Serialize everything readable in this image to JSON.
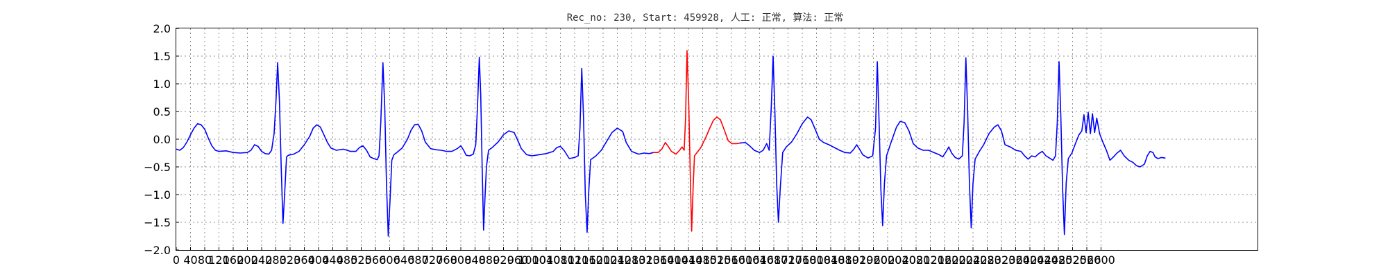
{
  "chart_data": {
    "type": "line",
    "title": "Rec_no: 230, Start: 459928, 人工: 正常, 算法: 正常",
    "xlabel": "",
    "ylabel": "",
    "xlim": [
      0,
      3040
    ],
    "ylim": [
      -2.0,
      2.0
    ],
    "grid": true,
    "x_ticks": [
      0,
      40,
      80,
      120,
      160,
      200,
      240,
      280,
      320,
      360,
      400,
      440,
      480,
      520,
      560,
      600,
      640,
      680,
      720,
      760,
      800,
      840,
      880,
      920,
      960,
      1000,
      1040,
      1080,
      1120,
      1160,
      1200,
      1240,
      1280,
      1320,
      1360,
      1400,
      1440,
      1480,
      1520,
      1560,
      1600,
      1640,
      1680,
      1720,
      1760,
      1800,
      1840,
      1880,
      1920,
      1960,
      2000,
      2040,
      2080,
      2120,
      2160,
      2200,
      2240,
      2280,
      2320,
      2360,
      2400,
      2440,
      2480,
      2520,
      2560,
      2600
    ],
    "x_tick_labels": [
      "0",
      "40",
      "80",
      "120",
      "160",
      "200",
      "240",
      "280",
      "320",
      "360",
      "400",
      "440",
      "480",
      "520",
      "560",
      "600",
      "640",
      "680",
      "720",
      "760",
      "800",
      "840",
      "880",
      "920",
      "960",
      "1000",
      "1040",
      "1080",
      "1120",
      "1160",
      "1200",
      "1240",
      "1280",
      "1320",
      "1360",
      "1400",
      "1440",
      "1480",
      "1520",
      "1560",
      "1600",
      "1640",
      "1680",
      "1720",
      "1760",
      "1800",
      "1840",
      "1880",
      "1920",
      "1960",
      "2000",
      "2040",
      "2080",
      "2120",
      "2160",
      "2200",
      "2240",
      "2280",
      "2320",
      "2360",
      "2400",
      "2440",
      "2480",
      "2520",
      "2560",
      "2600"
    ],
    "y_ticks": [
      -2.0,
      -1.5,
      -1.0,
      -0.5,
      0.0,
      0.5,
      1.0,
      1.5,
      2.0
    ],
    "y_tick_labels": [
      "−2.0",
      "−1.5",
      "−1.0",
      "−0.5",
      "0.0",
      "0.5",
      "1.0",
      "1.5",
      "2.0"
    ],
    "series": [
      {
        "color": "#0000ff",
        "points": [
          [
            0,
            -0.18
          ],
          [
            10,
            -0.2
          ],
          [
            20,
            -0.15
          ],
          [
            30,
            -0.05
          ],
          [
            40,
            0.08
          ],
          [
            50,
            0.2
          ],
          [
            60,
            0.28
          ],
          [
            70,
            0.26
          ],
          [
            80,
            0.18
          ],
          [
            90,
            0.02
          ],
          [
            100,
            -0.12
          ],
          [
            110,
            -0.2
          ],
          [
            120,
            -0.22
          ],
          [
            140,
            -0.21
          ],
          [
            160,
            -0.24
          ],
          [
            180,
            -0.25
          ],
          [
            200,
            -0.24
          ],
          [
            210,
            -0.2
          ],
          [
            220,
            -0.1
          ],
          [
            230,
            -0.13
          ],
          [
            240,
            -0.22
          ],
          [
            250,
            -0.26
          ],
          [
            260,
            -0.27
          ],
          [
            268,
            -0.2
          ],
          [
            275,
            0.1
          ],
          [
            280,
            0.65
          ],
          [
            285,
            1.38
          ],
          [
            290,
            0.7
          ],
          [
            295,
            -0.5
          ],
          [
            300,
            -1.52
          ],
          [
            305,
            -0.95
          ],
          [
            310,
            -0.32
          ],
          [
            315,
            -0.29
          ],
          [
            330,
            -0.27
          ],
          [
            345,
            -0.22
          ],
          [
            360,
            -0.1
          ],
          [
            375,
            0.05
          ],
          [
            385,
            0.2
          ],
          [
            395,
            0.26
          ],
          [
            405,
            0.22
          ],
          [
            415,
            0.08
          ],
          [
            425,
            -0.06
          ],
          [
            435,
            -0.16
          ],
          [
            450,
            -0.2
          ],
          [
            470,
            -0.18
          ],
          [
            490,
            -0.22
          ],
          [
            505,
            -0.22
          ],
          [
            515,
            -0.15
          ],
          [
            525,
            -0.12
          ],
          [
            535,
            -0.2
          ],
          [
            545,
            -0.32
          ],
          [
            555,
            -0.35
          ],
          [
            565,
            -0.37
          ],
          [
            570,
            -0.3
          ],
          [
            575,
            0.3
          ],
          [
            581,
            1.38
          ],
          [
            586,
            0.6
          ],
          [
            591,
            -0.8
          ],
          [
            596,
            -1.75
          ],
          [
            601,
            -1.1
          ],
          [
            606,
            -0.38
          ],
          [
            612,
            -0.28
          ],
          [
            620,
            -0.24
          ],
          [
            635,
            -0.16
          ],
          [
            650,
            0.0
          ],
          [
            660,
            0.16
          ],
          [
            670,
            0.26
          ],
          [
            680,
            0.27
          ],
          [
            690,
            0.15
          ],
          [
            700,
            -0.05
          ],
          [
            715,
            -0.17
          ],
          [
            730,
            -0.19
          ],
          [
            745,
            -0.2
          ],
          [
            760,
            -0.22
          ],
          [
            775,
            -0.22
          ],
          [
            790,
            -0.17
          ],
          [
            800,
            -0.12
          ],
          [
            808,
            -0.2
          ],
          [
            815,
            -0.29
          ],
          [
            825,
            -0.3
          ],
          [
            835,
            -0.27
          ],
          [
            842,
            -0.1
          ],
          [
            847,
            0.6
          ],
          [
            852,
            1.48
          ],
          [
            856,
            0.8
          ],
          [
            860,
            -0.5
          ],
          [
            864,
            -1.64
          ],
          [
            868,
            -1.05
          ],
          [
            872,
            -0.5
          ],
          [
            878,
            -0.2
          ],
          [
            890,
            -0.14
          ],
          [
            905,
            -0.05
          ],
          [
            920,
            0.08
          ],
          [
            935,
            0.15
          ],
          [
            950,
            0.12
          ],
          [
            960,
            -0.02
          ],
          [
            970,
            -0.17
          ],
          [
            985,
            -0.28
          ],
          [
            1000,
            -0.3
          ],
          [
            1020,
            -0.28
          ],
          [
            1040,
            -0.26
          ],
          [
            1060,
            -0.22
          ],
          [
            1070,
            -0.15
          ],
          [
            1080,
            -0.13
          ],
          [
            1090,
            -0.2
          ],
          [
            1105,
            -0.35
          ],
          [
            1120,
            -0.33
          ],
          [
            1130,
            -0.3
          ],
          [
            1135,
            0.2
          ],
          [
            1140,
            1.28
          ],
          [
            1145,
            0.4
          ],
          [
            1150,
            -1.0
          ],
          [
            1155,
            -1.68
          ],
          [
            1160,
            -0.9
          ],
          [
            1165,
            -0.37
          ],
          [
            1180,
            -0.3
          ],
          [
            1195,
            -0.2
          ],
          [
            1210,
            -0.04
          ],
          [
            1225,
            0.12
          ],
          [
            1240,
            0.2
          ],
          [
            1255,
            0.14
          ],
          [
            1265,
            -0.06
          ],
          [
            1280,
            -0.22
          ],
          [
            1300,
            -0.27
          ],
          [
            1315,
            -0.25
          ],
          [
            1330,
            -0.26
          ],
          [
            1342,
            -0.24
          ]
        ]
      },
      {
        "color": "#ff0000",
        "points": [
          [
            1342,
            -0.24
          ],
          [
            1355,
            -0.24
          ],
          [
            1365,
            -0.18
          ],
          [
            1375,
            -0.06
          ],
          [
            1382,
            -0.12
          ],
          [
            1392,
            -0.22
          ],
          [
            1405,
            -0.27
          ],
          [
            1415,
            -0.2
          ],
          [
            1422,
            -0.14
          ],
          [
            1428,
            -0.2
          ],
          [
            1432,
            0.4
          ],
          [
            1436,
            1.6
          ],
          [
            1441,
            0.6
          ],
          [
            1445,
            -0.6
          ],
          [
            1449,
            -1.66
          ],
          [
            1453,
            -0.9
          ],
          [
            1457,
            -0.3
          ],
          [
            1463,
            -0.25
          ],
          [
            1475,
            -0.15
          ],
          [
            1490,
            0.05
          ],
          [
            1500,
            0.2
          ],
          [
            1510,
            0.34
          ],
          [
            1520,
            0.4
          ],
          [
            1530,
            0.35
          ],
          [
            1540,
            0.18
          ],
          [
            1552,
            -0.03
          ],
          [
            1562,
            -0.08
          ],
          [
            1575,
            -0.08
          ],
          [
            1585,
            -0.07
          ]
        ]
      },
      {
        "color": "#0000ff",
        "points": [
          [
            1585,
            -0.07
          ],
          [
            1600,
            -0.06
          ],
          [
            1612,
            -0.12
          ],
          [
            1625,
            -0.2
          ],
          [
            1640,
            -0.24
          ],
          [
            1650,
            -0.2
          ],
          [
            1660,
            -0.08
          ],
          [
            1667,
            -0.2
          ],
          [
            1673,
            0.6
          ],
          [
            1678,
            1.5
          ],
          [
            1683,
            0.5
          ],
          [
            1688,
            -0.8
          ],
          [
            1693,
            -1.5
          ],
          [
            1698,
            -0.9
          ],
          [
            1705,
            -0.24
          ],
          [
            1715,
            -0.14
          ],
          [
            1730,
            -0.05
          ],
          [
            1745,
            0.1
          ],
          [
            1760,
            0.28
          ],
          [
            1775,
            0.4
          ],
          [
            1785,
            0.35
          ],
          [
            1795,
            0.2
          ],
          [
            1808,
            0.0
          ],
          [
            1820,
            -0.06
          ],
          [
            1835,
            -0.1
          ],
          [
            1850,
            -0.15
          ],
          [
            1865,
            -0.2
          ],
          [
            1880,
            -0.24
          ],
          [
            1895,
            -0.25
          ],
          [
            1905,
            -0.18
          ],
          [
            1913,
            -0.1
          ],
          [
            1921,
            -0.18
          ],
          [
            1930,
            -0.28
          ],
          [
            1945,
            -0.34
          ],
          [
            1958,
            -0.3
          ],
          [
            1966,
            0.2
          ],
          [
            1971,
            1.4
          ],
          [
            1976,
            0.3
          ],
          [
            1981,
            -0.9
          ],
          [
            1986,
            -1.56
          ],
          [
            1991,
            -0.8
          ],
          [
            1997,
            -0.3
          ],
          [
            2010,
            -0.05
          ],
          [
            2025,
            0.22
          ],
          [
            2035,
            0.32
          ],
          [
            2048,
            0.3
          ],
          [
            2060,
            0.15
          ],
          [
            2072,
            -0.08
          ],
          [
            2085,
            -0.16
          ],
          [
            2100,
            -0.2
          ],
          [
            2115,
            -0.2
          ],
          [
            2130,
            -0.24
          ],
          [
            2145,
            -0.28
          ],
          [
            2155,
            -0.32
          ],
          [
            2165,
            -0.22
          ],
          [
            2172,
            -0.14
          ],
          [
            2180,
            -0.25
          ],
          [
            2190,
            -0.33
          ],
          [
            2200,
            -0.36
          ],
          [
            2210,
            -0.3
          ],
          [
            2215,
            0.3
          ],
          [
            2220,
            1.47
          ],
          [
            2225,
            0.5
          ],
          [
            2230,
            -0.8
          ],
          [
            2235,
            -1.6
          ],
          [
            2240,
            -0.8
          ],
          [
            2246,
            -0.36
          ],
          [
            2258,
            -0.22
          ],
          [
            2270,
            -0.1
          ],
          [
            2285,
            0.1
          ],
          [
            2300,
            0.22
          ],
          [
            2310,
            0.26
          ],
          [
            2320,
            0.15
          ],
          [
            2330,
            -0.1
          ],
          [
            2345,
            -0.14
          ],
          [
            2360,
            -0.2
          ],
          [
            2375,
            -0.22
          ],
          [
            2385,
            -0.3
          ],
          [
            2395,
            -0.36
          ],
          [
            2405,
            -0.3
          ],
          [
            2415,
            -0.32
          ],
          [
            2425,
            -0.26
          ],
          [
            2435,
            -0.22
          ],
          [
            2445,
            -0.3
          ],
          [
            2455,
            -0.34
          ],
          [
            2465,
            -0.38
          ],
          [
            2472,
            -0.3
          ],
          [
            2477,
            0.3
          ],
          [
            2482,
            1.4
          ],
          [
            2487,
            0.4
          ],
          [
            2492,
            -0.9
          ],
          [
            2497,
            -1.72
          ],
          [
            2502,
            -0.8
          ],
          [
            2508,
            -0.35
          ],
          [
            2518,
            -0.25
          ],
          [
            2528,
            -0.08
          ],
          [
            2538,
            0.08
          ],
          [
            2546,
            0.15
          ],
          [
            2552,
            0.44
          ],
          [
            2558,
            0.12
          ],
          [
            2564,
            0.48
          ],
          [
            2570,
            0.1
          ],
          [
            2576,
            0.46
          ],
          [
            2582,
            0.12
          ],
          [
            2588,
            0.38
          ],
          [
            2596,
            0.1
          ],
          [
            2605,
            -0.05
          ],
          [
            2615,
            -0.2
          ],
          [
            2625,
            -0.38
          ],
          [
            2635,
            -0.32
          ],
          [
            2645,
            -0.25
          ],
          [
            2655,
            -0.2
          ],
          [
            2665,
            -0.3
          ],
          [
            2678,
            -0.38
          ],
          [
            2690,
            -0.42
          ],
          [
            2700,
            -0.48
          ],
          [
            2710,
            -0.5
          ],
          [
            2722,
            -0.45
          ],
          [
            2730,
            -0.3
          ],
          [
            2738,
            -0.22
          ],
          [
            2746,
            -0.24
          ],
          [
            2752,
            -0.32
          ],
          [
            2760,
            -0.35
          ],
          [
            2770,
            -0.33
          ],
          [
            2780,
            -0.34
          ]
        ]
      }
    ]
  }
}
